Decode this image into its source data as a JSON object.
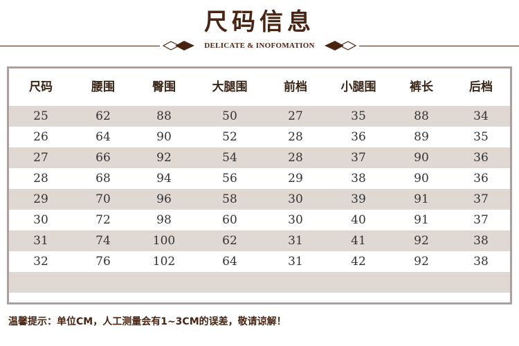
{
  "header": {
    "title": "尺码信息",
    "subtitle": "DELICATE & INOFOMATION"
  },
  "colors": {
    "brand": "#4a2412",
    "stripe": "#e0d8d3",
    "border": "#ae9f9f"
  },
  "table": {
    "columns": [
      "尺码",
      "腰围",
      "臀围",
      "大腿围",
      "前档",
      "小腿围",
      "裤长",
      "后档"
    ],
    "rows": [
      [
        "25",
        "62",
        "88",
        "50",
        "27",
        "35",
        "88",
        "34"
      ],
      [
        "26",
        "64",
        "90",
        "52",
        "28",
        "36",
        "89",
        "35"
      ],
      [
        "27",
        "66",
        "92",
        "54",
        "28",
        "37",
        "90",
        "36"
      ],
      [
        "28",
        "68",
        "94",
        "56",
        "29",
        "38",
        "90",
        "36"
      ],
      [
        "29",
        "70",
        "96",
        "58",
        "30",
        "39",
        "91",
        "37"
      ],
      [
        "30",
        "72",
        "98",
        "60",
        "30",
        "40",
        "91",
        "37"
      ],
      [
        "31",
        "74",
        "100",
        "62",
        "31",
        "41",
        "92",
        "38"
      ],
      [
        "32",
        "76",
        "102",
        "64",
        "31",
        "42",
        "92",
        "38"
      ]
    ]
  },
  "note": "温馨提示：单位CM，人工测量会有1~3CM的误差，敬请谅解！"
}
